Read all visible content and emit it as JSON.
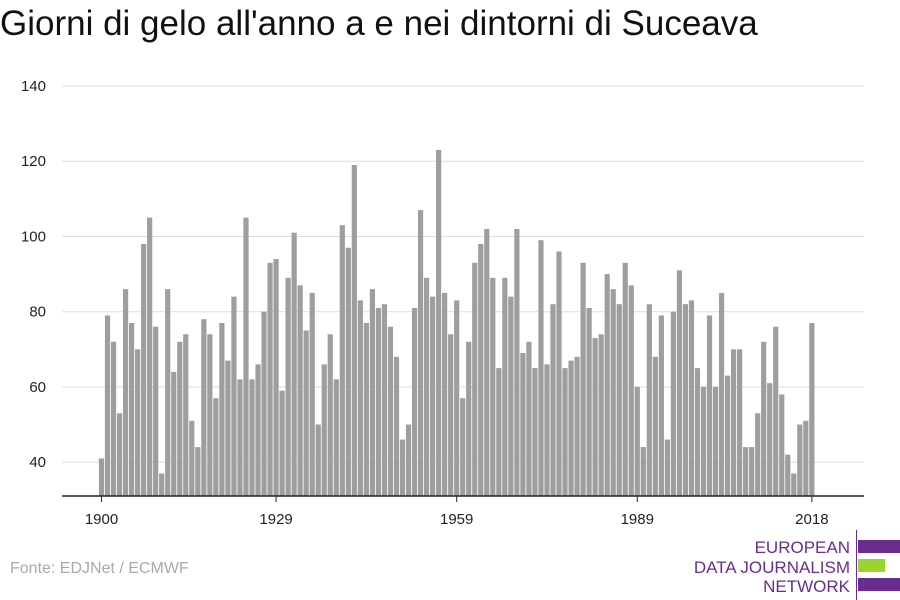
{
  "header": {
    "title": "Giorni di gelo all'anno a e nei dintorni di Suceava"
  },
  "footer": {
    "source": "Fonte: EDJNet / ECMWF"
  },
  "logo": {
    "lines": [
      "EUROPEAN",
      "DATA JOURNALISM",
      "NETWORK"
    ],
    "colors": {
      "purple": "#6a2d8f",
      "green": "#9bd42c"
    }
  },
  "colors": {
    "bar": "#9e9e9e",
    "grid": "#dddddd",
    "axis": "#222222"
  },
  "chart_data": {
    "type": "bar",
    "title": "Giorni di gelo all'anno a e nei dintorni di Suceava",
    "xlabel": "",
    "ylabel": "",
    "ylim": [
      31,
      140
    ],
    "yticks": [
      40,
      60,
      80,
      100,
      120,
      140
    ],
    "xticks": [
      1900,
      1929,
      1959,
      1989,
      2018
    ],
    "grid": true,
    "categories": [
      1900,
      1901,
      1902,
      1903,
      1904,
      1905,
      1906,
      1907,
      1908,
      1909,
      1910,
      1911,
      1912,
      1913,
      1914,
      1915,
      1916,
      1917,
      1918,
      1919,
      1920,
      1921,
      1922,
      1923,
      1924,
      1925,
      1926,
      1927,
      1928,
      1929,
      1930,
      1931,
      1932,
      1933,
      1934,
      1935,
      1936,
      1937,
      1938,
      1939,
      1940,
      1941,
      1942,
      1943,
      1944,
      1945,
      1946,
      1947,
      1948,
      1949,
      1950,
      1951,
      1952,
      1953,
      1954,
      1955,
      1956,
      1957,
      1958,
      1959,
      1960,
      1961,
      1962,
      1963,
      1964,
      1965,
      1966,
      1967,
      1968,
      1969,
      1970,
      1971,
      1972,
      1973,
      1974,
      1975,
      1976,
      1977,
      1978,
      1979,
      1980,
      1981,
      1982,
      1983,
      1984,
      1985,
      1986,
      1987,
      1988,
      1989,
      1990,
      1991,
      1992,
      1993,
      1994,
      1995,
      1996,
      1997,
      1998,
      1999,
      2000,
      2001,
      2002,
      2003,
      2004,
      2005,
      2006,
      2007,
      2008,
      2009,
      2010,
      2011,
      2012,
      2013,
      2014,
      2015,
      2016,
      2017,
      2018
    ],
    "values": [
      41,
      79,
      72,
      53,
      86,
      77,
      70,
      98,
      105,
      76,
      37,
      86,
      64,
      72,
      74,
      51,
      44,
      78,
      74,
      57,
      77,
      67,
      84,
      62,
      105,
      62,
      66,
      80,
      93,
      94,
      59,
      89,
      101,
      87,
      75,
      85,
      50,
      66,
      74,
      62,
      103,
      97,
      119,
      83,
      77,
      86,
      81,
      82,
      76,
      68,
      46,
      50,
      81,
      107,
      89,
      84,
      123,
      85,
      74,
      83,
      57,
      72,
      93,
      98,
      102,
      89,
      65,
      89,
      84,
      102,
      69,
      72,
      65,
      99,
      66,
      82,
      96,
      65,
      67,
      68,
      93,
      81,
      73,
      74,
      90,
      86,
      82,
      93,
      87,
      60,
      44,
      82,
      68,
      79,
      46,
      80,
      91,
      82,
      83,
      65,
      60,
      79,
      60,
      85,
      63,
      70,
      70,
      44,
      44,
      53,
      72,
      61,
      76,
      58,
      42,
      37,
      50,
      51,
      77
    ]
  }
}
